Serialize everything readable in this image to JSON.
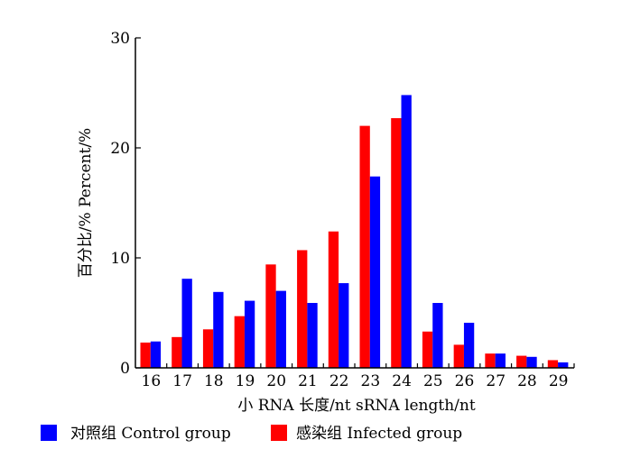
{
  "chart_data": {
    "type": "bar",
    "xlabel": "小 RNA 长度/nt  sRNA  length/nt",
    "ylabel": "百分比/%    Percent/%",
    "ylim": [
      0,
      30
    ],
    "yticks": [
      0,
      10,
      20,
      30
    ],
    "categories": [
      "16",
      "17",
      "18",
      "19",
      "20",
      "21",
      "22",
      "23",
      "24",
      "25",
      "26",
      "27",
      "28",
      "29"
    ],
    "series": [
      {
        "name": "感染组 Infected  group",
        "color": "#ff0000",
        "values": [
          2.3,
          2.8,
          3.5,
          4.7,
          9.4,
          10.7,
          12.4,
          22.0,
          22.7,
          3.3,
          2.1,
          1.3,
          1.1,
          0.7
        ]
      },
      {
        "name": "对照组 Control  group",
        "color": "#0000ff",
        "values": [
          2.4,
          8.1,
          6.9,
          6.1,
          7.0,
          5.9,
          7.7,
          17.4,
          24.8,
          5.9,
          4.1,
          1.3,
          1.0,
          0.5
        ]
      }
    ],
    "legend": [
      {
        "label": "对照组 Control  group",
        "color": "#0000ff"
      },
      {
        "label": "感染组 Infected  group",
        "color": "#ff0000"
      }
    ],
    "legend_position": "bottom"
  }
}
